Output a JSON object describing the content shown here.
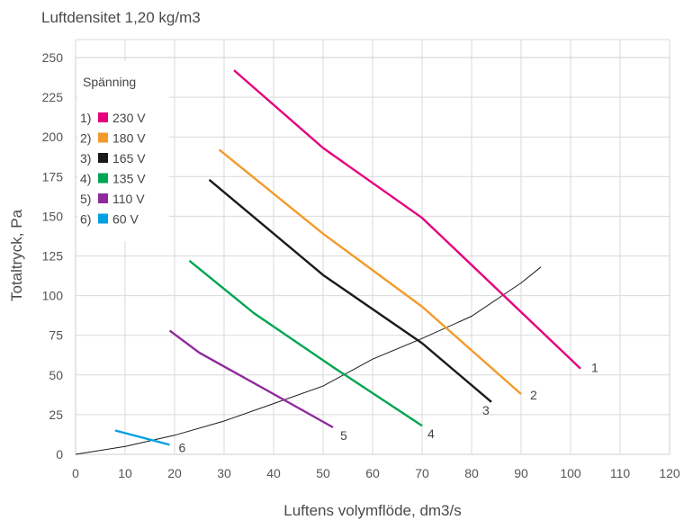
{
  "chart_data": {
    "type": "line",
    "title": "Luftdensitet 1,20 kg/m3",
    "xlabel": "Luftens volymflöde, dm3/s",
    "ylabel": "Totaltryck, Pa",
    "xlim": [
      0,
      120
    ],
    "ylim": [
      0,
      250
    ],
    "xticks": [
      0,
      10,
      20,
      30,
      40,
      50,
      60,
      70,
      80,
      90,
      100,
      110,
      120
    ],
    "yticks": [
      0,
      25,
      50,
      75,
      100,
      125,
      150,
      175,
      200,
      225,
      250
    ],
    "grid": true,
    "legend": {
      "title": "Spänning",
      "placement": "top-left",
      "entries": [
        {
          "index": "1)",
          "label": "230 V",
          "color": "#e6007e"
        },
        {
          "index": "2)",
          "label": "180 V",
          "color": "#f39a2b"
        },
        {
          "index": "3)",
          "label": "165 V",
          "color": "#1a1a1a"
        },
        {
          "index": "4)",
          "label": "135 V",
          "color": "#00a651"
        },
        {
          "index": "5)",
          "label": "110 V",
          "color": "#8e2a9c"
        },
        {
          "index": "6)",
          "label": "60 V",
          "color": "#00a0e3"
        }
      ]
    },
    "series": [
      {
        "label": "1",
        "color": "#e6007e",
        "points": [
          [
            32,
            242
          ],
          [
            50,
            193
          ],
          [
            70,
            149
          ],
          [
            102,
            54
          ]
        ]
      },
      {
        "label": "2",
        "color": "#f39a2b",
        "points": [
          [
            29,
            192
          ],
          [
            50,
            139
          ],
          [
            70,
            93
          ],
          [
            90,
            38
          ]
        ]
      },
      {
        "label": "3",
        "color": "#1a1a1a",
        "points": [
          [
            27,
            173
          ],
          [
            50,
            113
          ],
          [
            70,
            70
          ],
          [
            84,
            33
          ]
        ]
      },
      {
        "label": "4",
        "color": "#00a651",
        "points": [
          [
            23,
            122
          ],
          [
            36,
            89
          ],
          [
            52,
            55
          ],
          [
            70,
            18
          ]
        ]
      },
      {
        "label": "5",
        "color": "#8e2a9c",
        "points": [
          [
            19,
            78
          ],
          [
            25,
            64
          ],
          [
            40,
            38
          ],
          [
            52,
            17
          ]
        ]
      },
      {
        "label": "6",
        "color": "#00a0e3",
        "points": [
          [
            8,
            15
          ],
          [
            19,
            6
          ]
        ]
      }
    ],
    "system_curve": {
      "color": "#1a1a1a",
      "points": [
        [
          0,
          0
        ],
        [
          10,
          5
        ],
        [
          20,
          12
        ],
        [
          30,
          21
        ],
        [
          40,
          32
        ],
        [
          50,
          43
        ],
        [
          60,
          60
        ],
        [
          70,
          73
        ],
        [
          80,
          87
        ],
        [
          90,
          108
        ],
        [
          94,
          118
        ]
      ]
    }
  }
}
